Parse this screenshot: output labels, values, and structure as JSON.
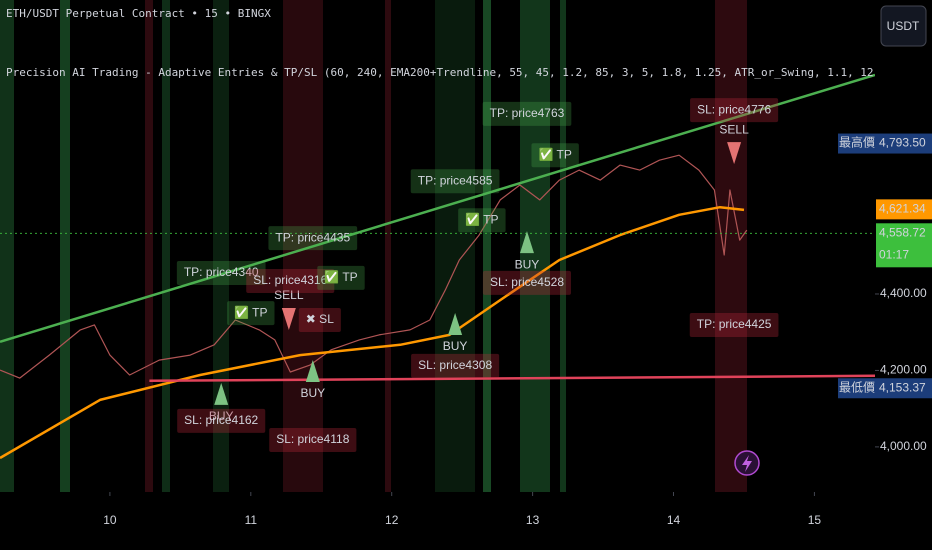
{
  "chart_data": {
    "type": "line",
    "title": "ETH/USDT Perpetual Contract • 15 • BINGX",
    "subtitle": "Precision AI Trading - Adaptive Entries & TP/SL (60, 240, EMA200+Trendline, 55, 45, 1.2, 85, 3, 5, 1.8, 1.25, ATR_or_Swing, 1.1, 12, 0.3, 1.8, 0.9",
    "currency_button": "USDT",
    "xlim": [
      9.22,
      15.43
    ],
    "xticks": [
      10,
      11,
      12,
      13,
      14,
      15
    ],
    "ylim": [
      3882,
      5169
    ],
    "yticks": [
      {
        "value": 4000,
        "label": "4,000.00"
      },
      {
        "value": 4200,
        "label": "4,200.00"
      },
      {
        "value": 4400,
        "label": "4,400.00"
      },
      {
        "value": 4800,
        "label": "4,800.00"
      }
    ],
    "grid": false,
    "series": [
      {
        "name": "Price",
        "color": "#b05555",
        "x": [
          9.22,
          9.36,
          9.57,
          9.79,
          9.89,
          10,
          10.14,
          10.35,
          10.57,
          10.74,
          10.89,
          11.06,
          11.17,
          11.28,
          11.42,
          11.57,
          11.77,
          11.91,
          12.13,
          12.27,
          12.38,
          12.48,
          12.62,
          12.77,
          12.91,
          13.05,
          13.19,
          13.33,
          13.48,
          13.62,
          13.76,
          13.9,
          14.04,
          14.18,
          14.29,
          14.36,
          14.4,
          14.47,
          14.52
        ],
        "values": [
          4201,
          4180,
          4240,
          4306,
          4319,
          4240,
          4188,
          4227,
          4240,
          4267,
          4332,
          4306,
          4280,
          4196,
          4214,
          4254,
          4280,
          4293,
          4306,
          4332,
          4410,
          4489,
          4554,
          4646,
          4685,
          4646,
          4698,
          4724,
          4698,
          4737,
          4724,
          4750,
          4763,
          4724,
          4672,
          4502,
          4672,
          4541,
          4567
        ]
      },
      {
        "name": "EMA200",
        "color": "#ff9800",
        "x": [
          9.22,
          9.93,
          10.64,
          11.35,
          12.06,
          12.41,
          12.77,
          13.19,
          13.62,
          14.04,
          14.33,
          14.5
        ],
        "values": [
          3971,
          4123,
          4188,
          4240,
          4267,
          4293,
          4384,
          4489,
          4554,
          4607,
          4627,
          4620
        ]
      },
      {
        "name": "Trendline",
        "color": "#4caf50",
        "x": [
          9.22,
          15.43
        ],
        "values": [
          4275,
          4973
        ]
      },
      {
        "name": "Support",
        "color": "#e0435a",
        "x": [
          10.28,
          15.43
        ],
        "values": [
          4173,
          4186
        ]
      }
    ],
    "signals": [
      {
        "label": "BUY",
        "x": 10.79,
        "y": 4136,
        "color": "#7dc383"
      },
      {
        "label": "SELL",
        "x": 11.27,
        "y": 4337,
        "color": "#e57373"
      },
      {
        "label": "BUY",
        "x": 11.44,
        "y": 4196,
        "color": "#7dc383"
      },
      {
        "label": "BUY",
        "x": 12.45,
        "y": 4319,
        "color": "#7dc383"
      },
      {
        "label": "BUY",
        "x": 12.96,
        "y": 4533,
        "color": "#7dc383"
      },
      {
        "label": "SELL",
        "x": 14.43,
        "y": 4771,
        "color": "#e57373"
      }
    ],
    "annotations": [
      {
        "text": "TP: price4340",
        "x": 10.79,
        "y": 4455,
        "style": "tp"
      },
      {
        "text": "✅ TP",
        "x": 11.0,
        "y": 4350,
        "style": "tp"
      },
      {
        "text": "SL: price4162",
        "x": 10.79,
        "y": 4068,
        "style": "sl"
      },
      {
        "text": "TP: price4435",
        "x": 11.44,
        "y": 4546,
        "style": "tp"
      },
      {
        "text": "SL: price4316",
        "x": 11.28,
        "y": 4434,
        "style": "sl"
      },
      {
        "text": "✅ TP",
        "x": 11.64,
        "y": 4442,
        "style": "tp"
      },
      {
        "text": "✖ SL",
        "x": 11.49,
        "y": 4332,
        "style": "sl"
      },
      {
        "text": "SL: price4118",
        "x": 11.44,
        "y": 4018,
        "style": "sl"
      },
      {
        "text": "TP: price4585",
        "x": 12.45,
        "y": 4695,
        "style": "tp"
      },
      {
        "text": "✅ TP",
        "x": 12.64,
        "y": 4593,
        "style": "tp"
      },
      {
        "text": "SL: price4308",
        "x": 12.45,
        "y": 4212,
        "style": "sl"
      },
      {
        "text": "SL: price4528",
        "x": 12.96,
        "y": 4429,
        "style": "sl"
      },
      {
        "text": "TP: price4763",
        "x": 12.96,
        "y": 4871,
        "style": "tp"
      },
      {
        "text": "✅ TP",
        "x": 13.16,
        "y": 4763,
        "style": "tp"
      },
      {
        "text": "SL: price4776",
        "x": 14.43,
        "y": 4881,
        "style": "sl"
      },
      {
        "text": "TP: price4425",
        "x": 14.43,
        "y": 4319,
        "style": "sl"
      }
    ],
    "price_labels": [
      {
        "name": "最高價",
        "value": 4793.5,
        "value_label": "4,793.50",
        "color": "#1c3d7a"
      },
      {
        "value": 4621.34,
        "value_label": "4,621.34",
        "color": "#ff9800"
      },
      {
        "value": 4558.72,
        "value_label": "4,558.72",
        "countdown": "01:17",
        "color": "#3dbf3d"
      },
      {
        "name": "最低價",
        "value": 4153.37,
        "value_label": "4,153.37",
        "color": "#1c3d7a"
      }
    ]
  }
}
